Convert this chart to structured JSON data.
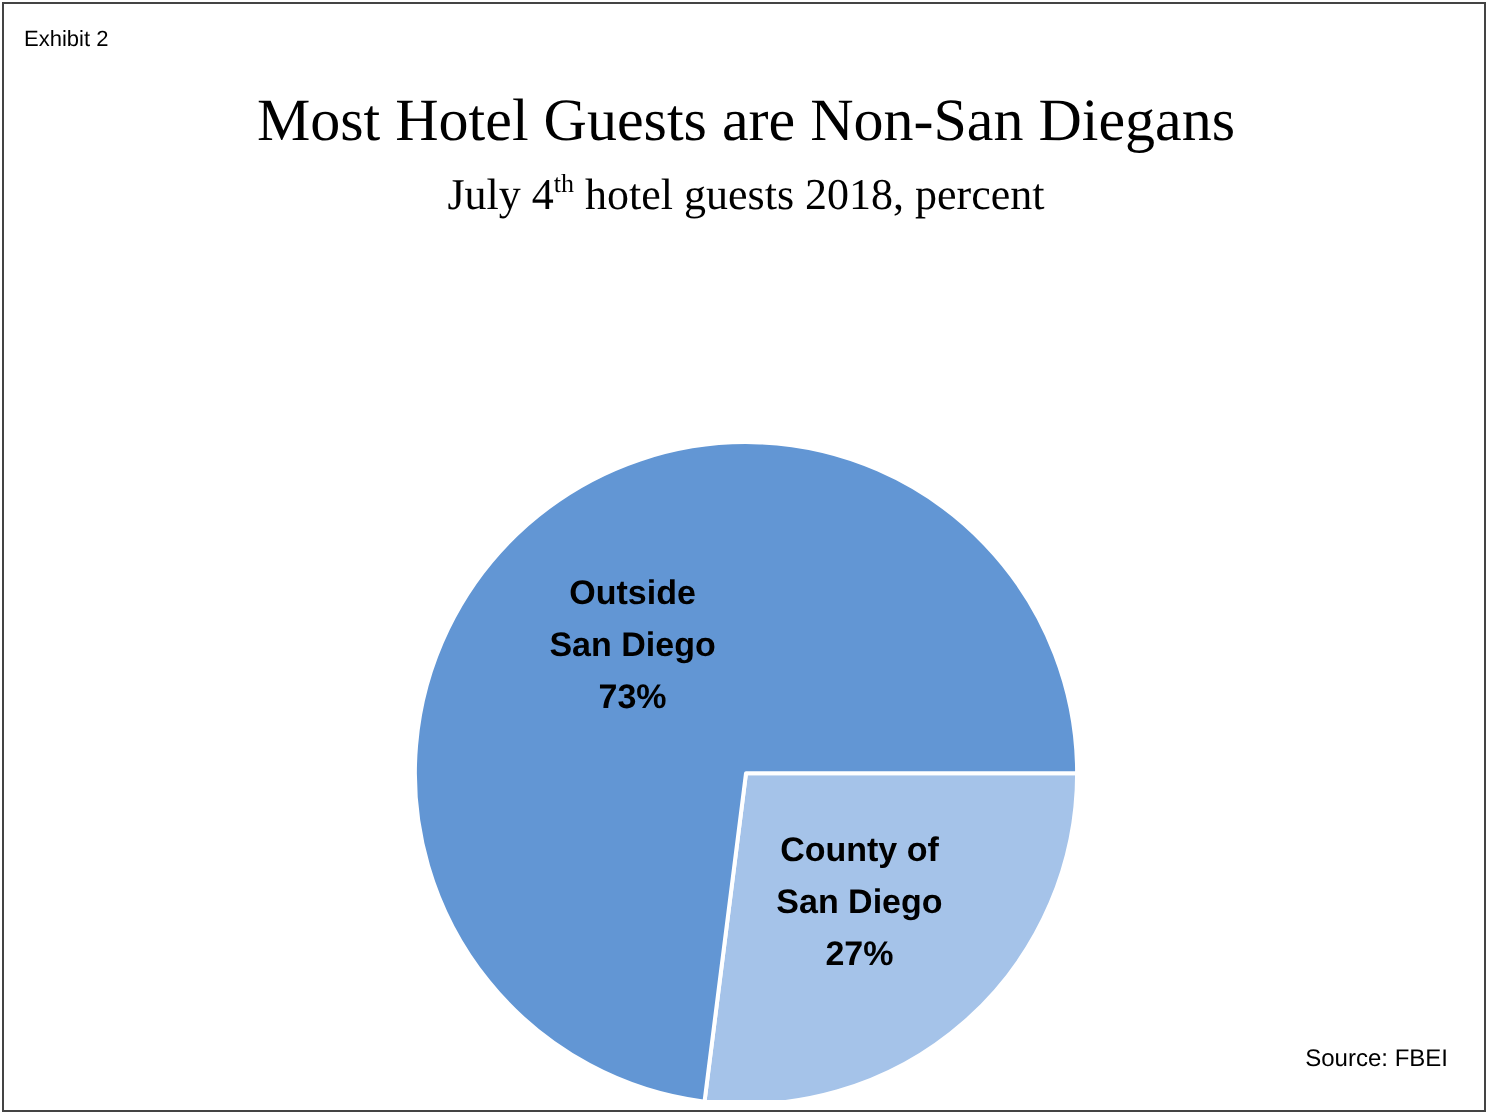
{
  "chart_data": {
    "type": "pie",
    "title": "Most Hotel Guests are Non-San Diegans",
    "subtitle": "July 4$^{th}$ hotel guests 2018, percent",
    "categories": [
      "County of San Diego",
      "Outside San Diego"
    ],
    "values": [
      27,
      73
    ],
    "colors": [
      "#a5c3e9",
      "#6296d4"
    ],
    "value_labels": [
      "27%",
      "73%"
    ],
    "annotations": [
      "Exhibit 2",
      "Source: FBEI"
    ],
    "legend": false
  }
}
